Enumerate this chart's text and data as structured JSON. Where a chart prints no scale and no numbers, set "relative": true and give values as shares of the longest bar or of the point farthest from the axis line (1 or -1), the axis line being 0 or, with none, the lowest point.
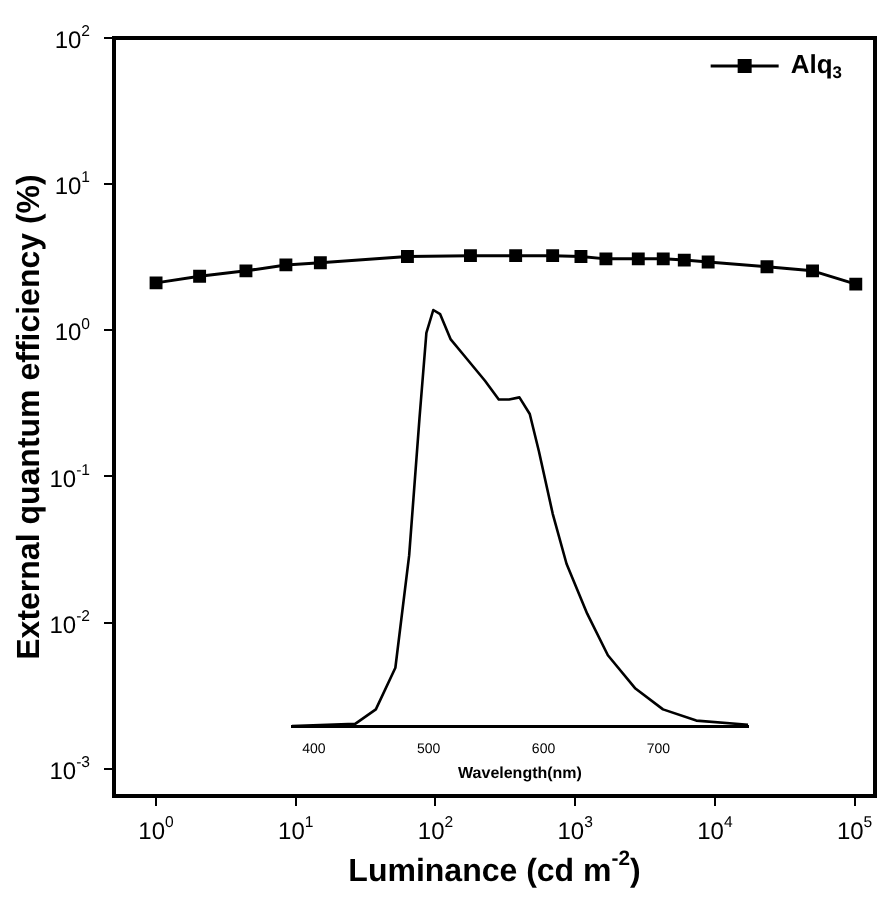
{
  "chart_data": [
    {
      "type": "line",
      "xlabel": "Luminance (cd m$^{-2}$)",
      "ylabel": "External quantum efficiency (%)",
      "log": "xy",
      "xlim": [
        0.5,
        140000
      ],
      "ylim": [
        0.00065,
        100
      ],
      "xticks": [
        {
          "value": 1,
          "label": "10$^{0}$"
        },
        {
          "value": 10,
          "label": "10$^{1}$"
        },
        {
          "value": 100,
          "label": "10$^{2}$"
        },
        {
          "value": 1000,
          "label": "10$^{3}$"
        },
        {
          "value": 10000,
          "label": "10$^{4}$"
        },
        {
          "value": 100000,
          "label": "10$^{5}$"
        }
      ],
      "yticks": [
        {
          "value": 0.001,
          "label": "10$^{-3}$"
        },
        {
          "value": 0.01,
          "label": "10$^{-2}$"
        },
        {
          "value": 0.1,
          "label": "10$^{-1}$"
        },
        {
          "value": 1,
          "label": "10$^{0}$"
        },
        {
          "value": 10,
          "label": "10$^{1}$"
        },
        {
          "value": 100,
          "label": "10$^{2}$"
        }
      ],
      "legend": "top right",
      "marker": "square",
      "line_style": "solid",
      "grid": false,
      "series": [
        {
          "name": "Alq$_{3}$",
          "color": "#000000",
          "x": [
            1,
            2.05,
            4.4,
            8.5,
            15,
            63,
            178,
            375,
            690,
            1100,
            1660,
            2830,
            4270,
            6040,
            8950,
            23600,
            50000,
            102000
          ],
          "values": [
            2.11,
            2.34,
            2.55,
            2.8,
            2.9,
            3.2,
            3.24,
            3.24,
            3.24,
            3.2,
            3.08,
            3.08,
            3.08,
            3.02,
            2.93,
            2.72,
            2.55,
            2.07
          ]
        }
      ]
    },
    {
      "type": "line",
      "relative": true,
      "xlabel": "Wavelength(nm)",
      "xlim": [
        381,
        778
      ],
      "xticks": [
        400,
        500,
        600,
        700
      ],
      "tick_labels": "x",
      "legend": false,
      "marker": "none",
      "line_style": "solid",
      "series": [
        {
          "color": "#000000",
          "x": [
            381,
            436,
            454,
            471,
            483,
            492,
            498,
            504,
            510,
            519,
            531,
            549,
            561,
            570,
            579,
            588,
            596,
            608,
            620,
            638,
            656,
            680,
            704,
            733,
            778
          ],
          "values": [
            0,
            0.005,
            0.04,
            0.14,
            0.41,
            0.74,
            0.945,
            1,
            0.99,
            0.93,
            0.89,
            0.83,
            0.785,
            0.785,
            0.79,
            0.75,
            0.66,
            0.51,
            0.39,
            0.27,
            0.17,
            0.09,
            0.04,
            0.013,
            0.003
          ]
        }
      ]
    }
  ]
}
